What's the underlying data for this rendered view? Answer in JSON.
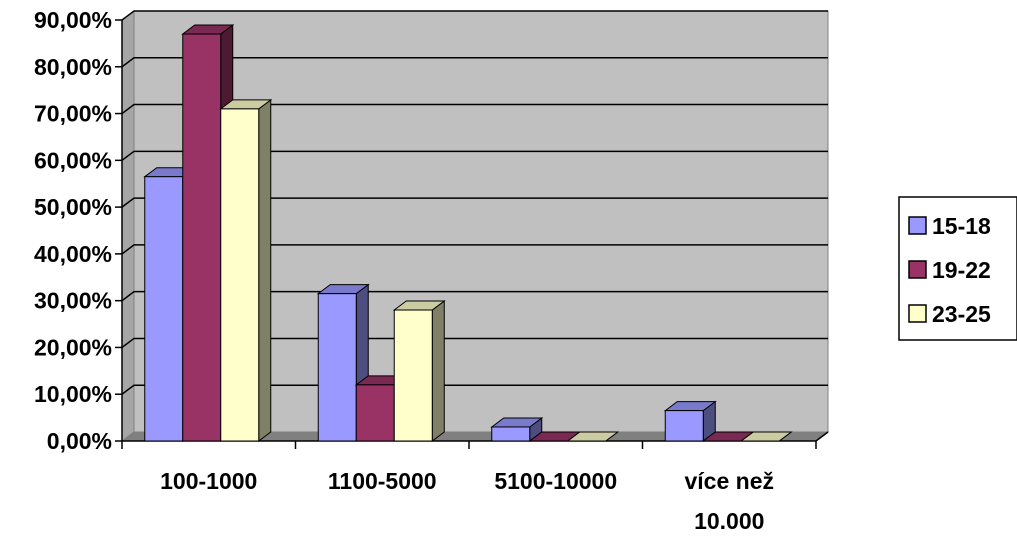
{
  "chart_data": {
    "type": "bar",
    "style": "3d-clustered-column",
    "categories": [
      "100-1000",
      "1100-5000",
      "5100-10000",
      "více než 10.000"
    ],
    "series": [
      {
        "name": "15-18",
        "values": [
          56.5,
          31.5,
          3.0,
          6.5
        ],
        "color": "#9999ff"
      },
      {
        "name": "19-22",
        "values": [
          87.0,
          12.0,
          0.0,
          0.0
        ],
        "color": "#993366"
      },
      {
        "name": "23-25",
        "values": [
          71.0,
          28.0,
          0.0,
          0.0
        ],
        "color": "#ffffcc"
      }
    ],
    "ylim": [
      0,
      90
    ],
    "ytick_step": 10,
    "ytick_labels": [
      "0,00%",
      "10,00%",
      "20,00%",
      "30,00%",
      "40,00%",
      "50,00%",
      "60,00%",
      "70,00%",
      "80,00%",
      "90,00%"
    ],
    "category_labels": [
      [
        "100-1000"
      ],
      [
        "1100-5000"
      ],
      [
        "5100-10000"
      ],
      [
        "více než",
        "10.000"
      ]
    ],
    "grid": true,
    "legend_position": "right",
    "plot_background": "#c0c0c0",
    "title": "",
    "xlabel": "",
    "ylabel": ""
  }
}
